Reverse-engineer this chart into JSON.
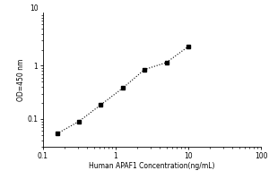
{
  "x": [
    0.156,
    0.3125,
    0.625,
    1.25,
    2.5,
    5.0,
    10.0
  ],
  "y": [
    0.053,
    0.09,
    0.185,
    0.38,
    0.85,
    1.15,
    2.3
  ],
  "xlim": [
    0.1,
    100
  ],
  "ylim": [
    0.03,
    10
  ],
  "xlabel": "Human APAF1 Concentration(ng/mL)",
  "ylabel": "OD=450 nm",
  "marker": "s",
  "marker_color": "black",
  "marker_size": 3.5,
  "line_style": ":",
  "line_color": "black",
  "line_width": 0.8,
  "background_color": "#ffffff",
  "tick_label_fontsize": 5.5,
  "axis_label_fontsize": 5.5,
  "yticks": [
    0.1,
    1
  ],
  "ytick_labels": [
    "0.1",
    "1"
  ],
  "xticks": [
    0.1,
    1,
    10,
    100
  ],
  "xtick_labels": [
    "0.1",
    "1",
    "10",
    "100"
  ],
  "top_ylabel": "10"
}
